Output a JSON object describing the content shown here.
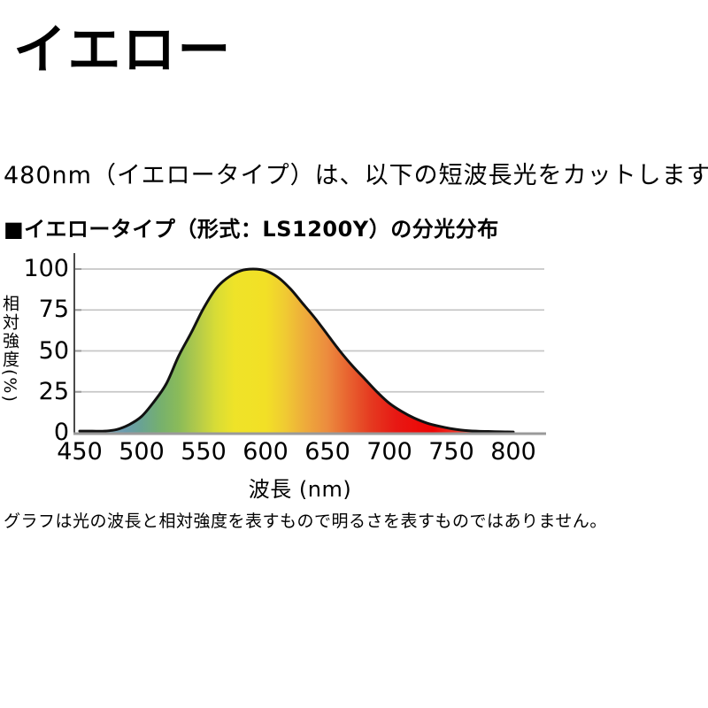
{
  "page": {
    "title": "イエロー",
    "intro": "480nm（イエロータイプ）は、以下の短波長光をカットします。",
    "section_heading": "■イエロータイプ（形式：LS1200Y）の分光分布",
    "footnote": "グラフは光の波長と相対強度を表すもので明るさを表すものではありません。"
  },
  "chart_data": {
    "type": "area",
    "title": "イエロータイプ（形式：LS1200Y）の分光分布",
    "xlabel": "波長 (nm)",
    "ylabel": "相対強度(%)",
    "xlim": [
      450,
      825
    ],
    "ylim": [
      0,
      100
    ],
    "grid": true,
    "legend": "none",
    "xticks": [
      450,
      500,
      550,
      600,
      650,
      700,
      750,
      800
    ],
    "yticks": [
      0,
      25,
      50,
      75,
      100
    ],
    "x": [
      450,
      460,
      470,
      480,
      490,
      500,
      510,
      520,
      530,
      540,
      550,
      560,
      570,
      580,
      590,
      600,
      610,
      620,
      630,
      640,
      650,
      660,
      670,
      680,
      690,
      700,
      710,
      720,
      730,
      740,
      750,
      760,
      770,
      780,
      790,
      800
    ],
    "values": [
      1,
      1,
      1,
      2,
      5,
      10,
      19,
      30,
      47,
      61,
      76,
      88,
      95,
      99,
      100,
      99,
      95,
      88,
      79,
      70,
      60,
      50,
      41,
      33,
      25,
      18,
      13,
      9,
      6,
      4,
      2.5,
      1.5,
      1,
      0.8,
      0.6,
      0.5
    ],
    "peak": {
      "wavelength_nm": 590,
      "relative_intensity_pct": 100
    },
    "fill_style": "visible-spectrum-gradient",
    "spectrum_stops": [
      {
        "nm": 460,
        "color": "#8fb0bc"
      },
      {
        "nm": 487,
        "color": "#6b9cae"
      },
      {
        "nm": 500,
        "color": "#69a392"
      },
      {
        "nm": 515,
        "color": "#76b06e"
      },
      {
        "nm": 530,
        "color": "#8abb59"
      },
      {
        "nm": 545,
        "color": "#b2ca4a"
      },
      {
        "nm": 560,
        "color": "#d8dc36"
      },
      {
        "nm": 575,
        "color": "#efe328"
      },
      {
        "nm": 600,
        "color": "#f2e026"
      },
      {
        "nm": 615,
        "color": "#f0cc32"
      },
      {
        "nm": 632,
        "color": "#eeab3b"
      },
      {
        "nm": 650,
        "color": "#ec8b3e"
      },
      {
        "nm": 668,
        "color": "#e8602f"
      },
      {
        "nm": 685,
        "color": "#e53a20"
      },
      {
        "nm": 705,
        "color": "#e71914"
      },
      {
        "nm": 735,
        "color": "#ee0404"
      },
      {
        "nm": 760,
        "color": "#ef4433"
      },
      {
        "nm": 800,
        "color": "#f5b0a6"
      }
    ],
    "curve_color": "#111111",
    "axis_color": "#4a4a4a",
    "grid_color": "#c7c7c7",
    "baseline_color": "#9a9a9a",
    "background_color": "#ffffff"
  }
}
